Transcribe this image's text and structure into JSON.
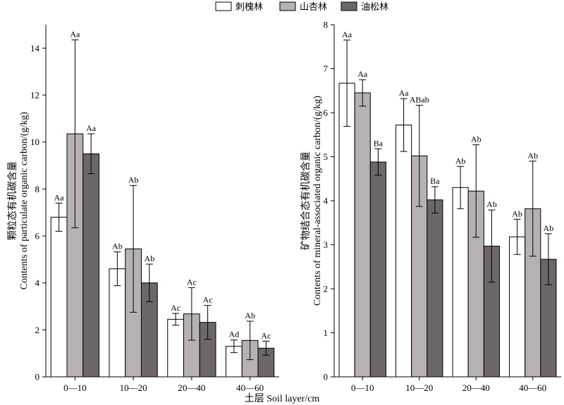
{
  "legend": [
    {
      "label": "刺槐林",
      "color": "#ffffff"
    },
    {
      "label": "山杏林",
      "color": "#b7b1b1"
    },
    {
      "label": "油松林",
      "color": "#6d6767"
    }
  ],
  "x_title": "土层  Soil layer/cm",
  "chart_data": [
    {
      "type": "bar",
      "ylabel_cn": "颗粒态有机碳含量",
      "ylabel_en": "Contents of particulate organic carbon/(g/kg)",
      "categories": [
        "0—10",
        "10—20",
        "20—40",
        "40—60"
      ],
      "ylim": [
        0,
        15
      ],
      "yticks": [
        0,
        2,
        4,
        6,
        8,
        10,
        12,
        14
      ],
      "series": [
        {
          "name": "刺槐林",
          "values": [
            6.8,
            4.6,
            2.45,
            1.3
          ],
          "errors": [
            0.6,
            0.72,
            0.25,
            0.27
          ],
          "labels": [
            "Aa",
            "Ab",
            "Ac",
            "Ad"
          ]
        },
        {
          "name": "山杏林",
          "values": [
            10.35,
            5.45,
            2.68,
            1.55
          ],
          "errors": [
            4.0,
            2.7,
            1.12,
            0.82
          ],
          "labels": [
            "Aa",
            "Ab",
            "Ac",
            "Ab"
          ]
        },
        {
          "name": "油松林",
          "values": [
            9.5,
            4.0,
            2.32,
            1.22
          ],
          "errors": [
            0.85,
            0.8,
            0.72,
            0.3
          ],
          "labels": [
            "Aa",
            "Ab",
            "Ac",
            "Ac"
          ]
        }
      ]
    },
    {
      "type": "bar",
      "ylabel_cn": "矿物结合态有机碳含量",
      "ylabel_en": "Contents of mineral-associated organic carbon/(g/kg)",
      "categories": [
        "0—10",
        "10—20",
        "20—40",
        "40—60"
      ],
      "ylim": [
        0,
        8
      ],
      "yticks": [
        0,
        1,
        2,
        3,
        4,
        5,
        6,
        7,
        8
      ],
      "series": [
        {
          "name": "刺槐林",
          "values": [
            6.67,
            5.72,
            4.3,
            3.18
          ],
          "errors": [
            0.98,
            0.6,
            0.48,
            0.4
          ],
          "labels": [
            "Aa",
            "Aa",
            "Ab",
            "Ab"
          ]
        },
        {
          "name": "山杏林",
          "values": [
            6.45,
            5.02,
            4.22,
            3.82
          ],
          "errors": [
            0.3,
            1.15,
            1.05,
            1.08
          ],
          "labels": [
            "Aa",
            "ABab",
            "Ab",
            "Ab"
          ]
        },
        {
          "name": "油松林",
          "values": [
            4.88,
            4.02,
            2.97,
            2.67
          ],
          "errors": [
            0.3,
            0.3,
            0.82,
            0.58
          ],
          "labels": [
            "Ba",
            "Ba",
            "Ab",
            "Ab"
          ]
        }
      ]
    }
  ]
}
